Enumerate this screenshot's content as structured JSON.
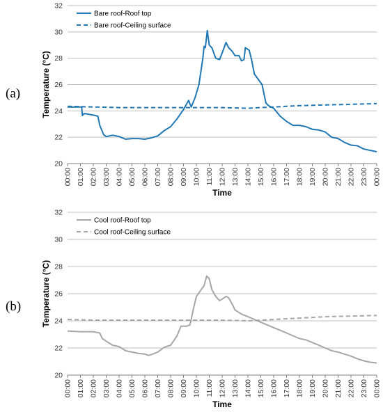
{
  "chart_data": [
    {
      "type": "line",
      "panel_label": "(a)",
      "xlabel": "Time",
      "ylabel": "Temperature (°C)",
      "ylim": [
        20,
        32
      ],
      "yticks": [
        20,
        22,
        24,
        26,
        28,
        30,
        32
      ],
      "xtick_labels": [
        "00:00",
        "01:00",
        "02:00",
        "03:00",
        "04:00",
        "05:00",
        "06:00",
        "07:00",
        "08:00",
        "09:00",
        "10:00",
        "11:00",
        "12:00",
        "13:00",
        "14:00",
        "15:00",
        "16:00",
        "17:00",
        "18:00",
        "19:00",
        "20:00",
        "21:00",
        "22:00",
        "23:00",
        "00:00"
      ],
      "grid": "horizontal",
      "legend": "top-left",
      "series": [
        {
          "name": "Bare roof-Roof top",
          "color": "#1f77b4",
          "dash": "solid",
          "points": [
            [
              0,
              24.3
            ],
            [
              1.1,
              24.3
            ],
            [
              1.15,
              23.65
            ],
            [
              1.3,
              23.8
            ],
            [
              1.9,
              23.7
            ],
            [
              2.35,
              23.6
            ],
            [
              2.5,
              22.9
            ],
            [
              2.8,
              22.2
            ],
            [
              3.0,
              22.05
            ],
            [
              3.5,
              22.15
            ],
            [
              4.0,
              22.05
            ],
            [
              4.5,
              21.85
            ],
            [
              5.0,
              21.9
            ],
            [
              5.5,
              21.9
            ],
            [
              6.0,
              21.85
            ],
            [
              6.5,
              21.95
            ],
            [
              7.0,
              22.1
            ],
            [
              7.5,
              22.5
            ],
            [
              8.0,
              22.8
            ],
            [
              8.5,
              23.4
            ],
            [
              9.0,
              24.1
            ],
            [
              9.4,
              24.8
            ],
            [
              9.6,
              24.3
            ],
            [
              9.9,
              25.0
            ],
            [
              10.2,
              26.0
            ],
            [
              10.5,
              28.0
            ],
            [
              10.6,
              28.9
            ],
            [
              10.7,
              28.8
            ],
            [
              10.85,
              30.1
            ],
            [
              11.0,
              29.0
            ],
            [
              11.2,
              28.8
            ],
            [
              11.5,
              28.0
            ],
            [
              11.8,
              27.9
            ],
            [
              12.0,
              28.4
            ],
            [
              12.3,
              29.2
            ],
            [
              12.5,
              28.8
            ],
            [
              12.8,
              28.5
            ],
            [
              13.0,
              28.2
            ],
            [
              13.3,
              28.2
            ],
            [
              13.5,
              27.8
            ],
            [
              13.7,
              27.9
            ],
            [
              13.8,
              28.8
            ],
            [
              14.1,
              28.6
            ],
            [
              14.3,
              27.8
            ],
            [
              14.5,
              26.8
            ],
            [
              14.8,
              26.4
            ],
            [
              15.1,
              26.0
            ],
            [
              15.4,
              24.6
            ],
            [
              15.6,
              24.4
            ],
            [
              16.0,
              24.2
            ],
            [
              16.5,
              23.6
            ],
            [
              17.0,
              23.2
            ],
            [
              17.5,
              22.9
            ],
            [
              18.0,
              22.9
            ],
            [
              18.5,
              22.8
            ],
            [
              19.0,
              22.6
            ],
            [
              19.5,
              22.55
            ],
            [
              20.0,
              22.4
            ],
            [
              20.5,
              22.0
            ],
            [
              21.0,
              21.9
            ],
            [
              21.5,
              21.6
            ],
            [
              22.0,
              21.4
            ],
            [
              22.5,
              21.35
            ],
            [
              23.0,
              21.1
            ],
            [
              23.5,
              21.0
            ],
            [
              24.0,
              20.9
            ]
          ]
        },
        {
          "name": "Bare roof-Ceiling surface",
          "color": "#1f77b4",
          "dash": "dashed",
          "points": [
            [
              0,
              24.35
            ],
            [
              2,
              24.3
            ],
            [
              4,
              24.25
            ],
            [
              6,
              24.25
            ],
            [
              8,
              24.25
            ],
            [
              10,
              24.25
            ],
            [
              12,
              24.25
            ],
            [
              14,
              24.2
            ],
            [
              15,
              24.25
            ],
            [
              16,
              24.3
            ],
            [
              18,
              24.4
            ],
            [
              20,
              24.45
            ],
            [
              22,
              24.5
            ],
            [
              24,
              24.55
            ]
          ]
        }
      ]
    },
    {
      "type": "line",
      "panel_label": "(b)",
      "xlabel": "Time",
      "ylabel": "Temperature (°C)",
      "ylim": [
        20,
        32
      ],
      "yticks": [
        20,
        22,
        24,
        26,
        28,
        30,
        32
      ],
      "xtick_labels": [
        "00:00",
        "01:00",
        "02:00",
        "03:00",
        "04:00",
        "05:00",
        "06:00",
        "07:00",
        "08:00",
        "09:00",
        "10:00",
        "11:00",
        "12:00",
        "13:00",
        "14:00",
        "15:00",
        "16:00",
        "17:00",
        "18:00",
        "19:00",
        "20:00",
        "21:00",
        "22:00",
        "23:00",
        "00:00"
      ],
      "grid": "horizontal",
      "legend": "top-left",
      "series": [
        {
          "name": "Cool roof-Roof top",
          "color": "#a6a6a6",
          "dash": "solid",
          "points": [
            [
              0,
              23.25
            ],
            [
              1,
              23.2
            ],
            [
              2,
              23.2
            ],
            [
              2.5,
              23.1
            ],
            [
              2.7,
              22.7
            ],
            [
              3.0,
              22.5
            ],
            [
              3.5,
              22.2
            ],
            [
              4.0,
              22.1
            ],
            [
              4.5,
              21.8
            ],
            [
              5.0,
              21.7
            ],
            [
              5.5,
              21.6
            ],
            [
              6.0,
              21.55
            ],
            [
              6.3,
              21.45
            ],
            [
              6.6,
              21.55
            ],
            [
              7.0,
              21.7
            ],
            [
              7.5,
              22.05
            ],
            [
              8.0,
              22.2
            ],
            [
              8.5,
              22.9
            ],
            [
              8.8,
              23.6
            ],
            [
              9.2,
              23.6
            ],
            [
              9.5,
              23.7
            ],
            [
              9.8,
              25.0
            ],
            [
              10.0,
              25.8
            ],
            [
              10.3,
              26.2
            ],
            [
              10.6,
              26.6
            ],
            [
              10.8,
              27.3
            ],
            [
              11.0,
              27.1
            ],
            [
              11.2,
              26.3
            ],
            [
              11.5,
              25.8
            ],
            [
              11.8,
              25.5
            ],
            [
              12.0,
              25.6
            ],
            [
              12.3,
              25.8
            ],
            [
              12.5,
              25.7
            ],
            [
              12.8,
              25.2
            ],
            [
              13.0,
              24.8
            ],
            [
              13.5,
              24.5
            ],
            [
              14.0,
              24.3
            ],
            [
              14.5,
              24.1
            ],
            [
              15.0,
              23.9
            ],
            [
              15.5,
              23.7
            ],
            [
              16.0,
              23.5
            ],
            [
              16.5,
              23.3
            ],
            [
              17.0,
              23.1
            ],
            [
              17.5,
              22.9
            ],
            [
              18.0,
              22.7
            ],
            [
              18.5,
              22.6
            ],
            [
              19.0,
              22.4
            ],
            [
              19.5,
              22.2
            ],
            [
              20.0,
              22.0
            ],
            [
              20.5,
              21.8
            ],
            [
              21.0,
              21.7
            ],
            [
              21.5,
              21.55
            ],
            [
              22.0,
              21.4
            ],
            [
              22.5,
              21.2
            ],
            [
              23.0,
              21.05
            ],
            [
              23.5,
              20.95
            ],
            [
              24.0,
              20.9
            ]
          ]
        },
        {
          "name": "Cool roof-Ceiling surface",
          "color": "#a6a6a6",
          "dash": "dashed",
          "points": [
            [
              0,
              24.1
            ],
            [
              2,
              24.05
            ],
            [
              4,
              24.05
            ],
            [
              6,
              24.05
            ],
            [
              8,
              24.05
            ],
            [
              10,
              24.05
            ],
            [
              12,
              24.05
            ],
            [
              14,
              24.0
            ],
            [
              15,
              24.05
            ],
            [
              16,
              24.1
            ],
            [
              18,
              24.2
            ],
            [
              20,
              24.3
            ],
            [
              22,
              24.35
            ],
            [
              24,
              24.4
            ]
          ]
        }
      ]
    }
  ]
}
